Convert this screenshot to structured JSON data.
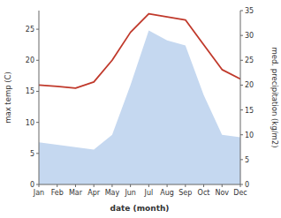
{
  "chart_data": {
    "type": "line",
    "categories": [
      "Jan",
      "Feb",
      "Mar",
      "Apr",
      "May",
      "Jun",
      "Jul",
      "Aug",
      "Sep",
      "Oct",
      "Nov",
      "Dec"
    ],
    "xlabel": "date (month)",
    "ylabel": "max temp (C)",
    "y2label": "med. precipitation (kg/m2)",
    "series": [
      {
        "type": "area",
        "axis": "y2",
        "color": "#c5d8f0",
        "values": [
          8.5,
          8.0,
          7.5,
          7.0,
          10.0,
          20.0,
          31.0,
          29.0,
          28.0,
          18.0,
          10.0,
          9.5
        ]
      },
      {
        "type": "line",
        "color": "#c0392b",
        "values": [
          16.0,
          15.8,
          15.5,
          16.5,
          20.0,
          24.5,
          27.5,
          27.0,
          26.5,
          22.5,
          18.5,
          17.0
        ]
      }
    ],
    "ylim": [
      0,
      28
    ],
    "yticks": [
      0,
      5,
      10,
      15,
      20,
      25
    ],
    "y2lim": [
      0,
      35
    ],
    "y2ticks": [
      0,
      5,
      10,
      15,
      20,
      25,
      30,
      35
    ],
    "grid": false
  }
}
